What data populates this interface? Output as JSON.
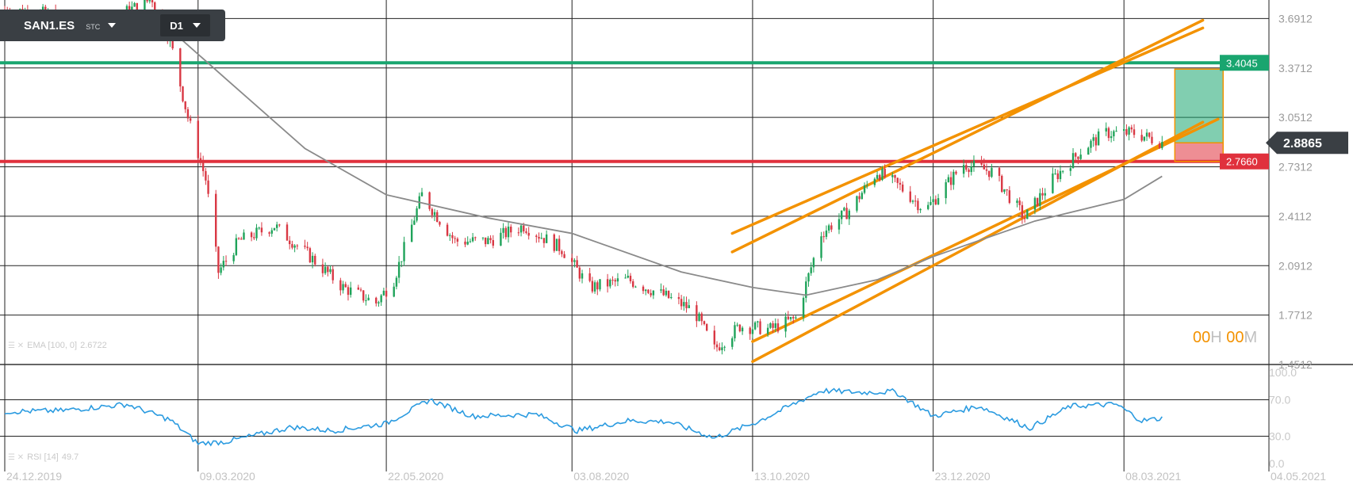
{
  "toolbar": {
    "symbol": "SAN1.ES",
    "exchange": "STC",
    "timeframe": "D1"
  },
  "timer": {
    "hours": "00",
    "hours_unit": "H",
    "minutes": "00",
    "minutes_unit": "M"
  },
  "indicators": {
    "ema_label": "EMA [100, 0]",
    "ema_value": "2.6722",
    "rsi_label": "RSI [14]",
    "rsi_value": "49.7"
  },
  "colors": {
    "up_candle": "#1fa35a",
    "down_candle": "#d93844",
    "ema": "#8a8a8a",
    "channel": "#f39200",
    "resistance": "#19a56f",
    "support": "#e0313d",
    "rsi": "#2b9be0",
    "price_tag": "#3a3f44"
  },
  "chart_data": {
    "type": "candlestick",
    "instrument": "SAN1.ES",
    "timeframe": "D1",
    "x_ticks": [
      "24.12.2019",
      "09.03.2020",
      "22.05.2020",
      "03.08.2020",
      "13.10.2020",
      "23.12.2020",
      "08.03.2021",
      "04.05.2021"
    ],
    "y_ticks": [
      "3.6912",
      "3.3712",
      "3.0512",
      "2.7312",
      "2.4112",
      "2.0912",
      "1.7712",
      "1.4512"
    ],
    "ylim": [
      1.4512,
      3.8112
    ],
    "current_price": "2.8865",
    "horizontal_levels": [
      {
        "name": "resistance",
        "value": "3.4045"
      },
      {
        "name": "support",
        "value": "2.7660"
      }
    ],
    "position_box": {
      "entry": 2.8865,
      "take_profit": 3.4045,
      "stop_loss": 2.766
    },
    "close_path": [
      {
        "date": "2019-12-24",
        "close": 3.75
      },
      {
        "date": "2020-01-10",
        "close": 3.72
      },
      {
        "date": "2020-01-25",
        "close": 3.62
      },
      {
        "date": "2020-02-08",
        "close": 3.72
      },
      {
        "date": "2020-02-20",
        "close": 3.82
      },
      {
        "date": "2020-02-27",
        "close": 3.55
      },
      {
        "date": "2020-03-05",
        "close": 3.05
      },
      {
        "date": "2020-03-12",
        "close": 2.65
      },
      {
        "date": "2020-03-17",
        "close": 2.05
      },
      {
        "date": "2020-03-25",
        "close": 2.25
      },
      {
        "date": "2020-04-08",
        "close": 2.35
      },
      {
        "date": "2020-04-22",
        "close": 2.15
      },
      {
        "date": "2020-05-05",
        "close": 1.95
      },
      {
        "date": "2020-05-18",
        "close": 1.85
      },
      {
        "date": "2020-05-25",
        "close": 2.0
      },
      {
        "date": "2020-06-05",
        "close": 2.55
      },
      {
        "date": "2020-06-18",
        "close": 2.25
      },
      {
        "date": "2020-07-01",
        "close": 2.25
      },
      {
        "date": "2020-07-15",
        "close": 2.35
      },
      {
        "date": "2020-07-30",
        "close": 2.2
      },
      {
        "date": "2020-08-10",
        "close": 1.95
      },
      {
        "date": "2020-08-25",
        "close": 2.0
      },
      {
        "date": "2020-09-08",
        "close": 1.9
      },
      {
        "date": "2020-09-20",
        "close": 1.8
      },
      {
        "date": "2020-09-28",
        "close": 1.55
      },
      {
        "date": "2020-10-08",
        "close": 1.7
      },
      {
        "date": "2020-10-20",
        "close": 1.68
      },
      {
        "date": "2020-10-30",
        "close": 1.75
      },
      {
        "date": "2020-11-09",
        "close": 2.3
      },
      {
        "date": "2020-11-20",
        "close": 2.45
      },
      {
        "date": "2020-12-01",
        "close": 2.7
      },
      {
        "date": "2020-12-10",
        "close": 2.6
      },
      {
        "date": "2020-12-20",
        "close": 2.45
      },
      {
        "date": "2021-01-04",
        "close": 2.75
      },
      {
        "date": "2021-01-15",
        "close": 2.7
      },
      {
        "date": "2021-01-28",
        "close": 2.4
      },
      {
        "date": "2021-02-08",
        "close": 2.65
      },
      {
        "date": "2021-02-20",
        "close": 2.85
      },
      {
        "date": "2021-03-01",
        "close": 2.95
      },
      {
        "date": "2021-03-12",
        "close": 2.95
      },
      {
        "date": "2021-03-23",
        "close": 2.89
      }
    ],
    "ema_path": [
      {
        "date": "2019-12-24",
        "value": 3.68
      },
      {
        "date": "2020-02-01",
        "value": 3.64
      },
      {
        "date": "2020-02-25",
        "value": 3.65
      },
      {
        "date": "2020-03-20",
        "value": 3.3
      },
      {
        "date": "2020-04-20",
        "value": 2.85
      },
      {
        "date": "2020-05-22",
        "value": 2.55
      },
      {
        "date": "2020-07-01",
        "value": 2.4
      },
      {
        "date": "2020-08-03",
        "value": 2.3
      },
      {
        "date": "2020-09-15",
        "value": 2.05
      },
      {
        "date": "2020-10-13",
        "value": 1.95
      },
      {
        "date": "2020-11-03",
        "value": 1.9
      },
      {
        "date": "2020-12-01",
        "value": 2.0
      },
      {
        "date": "2020-12-23",
        "value": 2.15
      },
      {
        "date": "2021-02-01",
        "value": 2.38
      },
      {
        "date": "2021-03-08",
        "value": 2.52
      },
      {
        "date": "2021-03-23",
        "value": 2.67
      }
    ],
    "channel_lines": [
      {
        "from": {
          "date": "2020-10-05",
          "value": 2.3
        },
        "to": {
          "date": "2021-04-08",
          "value": 3.63
        }
      },
      {
        "from": {
          "date": "2020-10-05",
          "value": 2.18
        },
        "to": {
          "date": "2021-04-08",
          "value": 3.68
        }
      },
      {
        "from": {
          "date": "2020-10-13",
          "value": 1.47
        },
        "to": {
          "date": "2021-04-08",
          "value": 3.02
        }
      },
      {
        "from": {
          "date": "2020-10-13",
          "value": 1.6
        },
        "to": {
          "date": "2021-04-14",
          "value": 3.04
        }
      }
    ],
    "rsi": {
      "period": 14,
      "ylim": [
        0,
        100
      ],
      "y_ticks": [
        "100.0",
        "70.0",
        "30.0",
        "0.0"
      ],
      "path": [
        {
          "date": "2019-12-24",
          "value": 57
        },
        {
          "date": "2020-01-15",
          "value": 58
        },
        {
          "date": "2020-02-10",
          "value": 65
        },
        {
          "date": "2020-02-27",
          "value": 48
        },
        {
          "date": "2020-03-09",
          "value": 22
        },
        {
          "date": "2020-03-20",
          "value": 24
        },
        {
          "date": "2020-04-15",
          "value": 40
        },
        {
          "date": "2020-05-01",
          "value": 36
        },
        {
          "date": "2020-05-22",
          "value": 44
        },
        {
          "date": "2020-06-08",
          "value": 70
        },
        {
          "date": "2020-06-25",
          "value": 52
        },
        {
          "date": "2020-07-20",
          "value": 54
        },
        {
          "date": "2020-08-05",
          "value": 36
        },
        {
          "date": "2020-08-25",
          "value": 47
        },
        {
          "date": "2020-09-10",
          "value": 46
        },
        {
          "date": "2020-09-28",
          "value": 28
        },
        {
          "date": "2020-10-15",
          "value": 46
        },
        {
          "date": "2020-11-09",
          "value": 80
        },
        {
          "date": "2020-11-25",
          "value": 78
        },
        {
          "date": "2020-12-08",
          "value": 79
        },
        {
          "date": "2020-12-23",
          "value": 52
        },
        {
          "date": "2021-01-10",
          "value": 63
        },
        {
          "date": "2021-01-30",
          "value": 39
        },
        {
          "date": "2021-02-15",
          "value": 63
        },
        {
          "date": "2021-03-05",
          "value": 65
        },
        {
          "date": "2021-03-15",
          "value": 47
        },
        {
          "date": "2021-03-23",
          "value": 49.7
        }
      ]
    }
  }
}
